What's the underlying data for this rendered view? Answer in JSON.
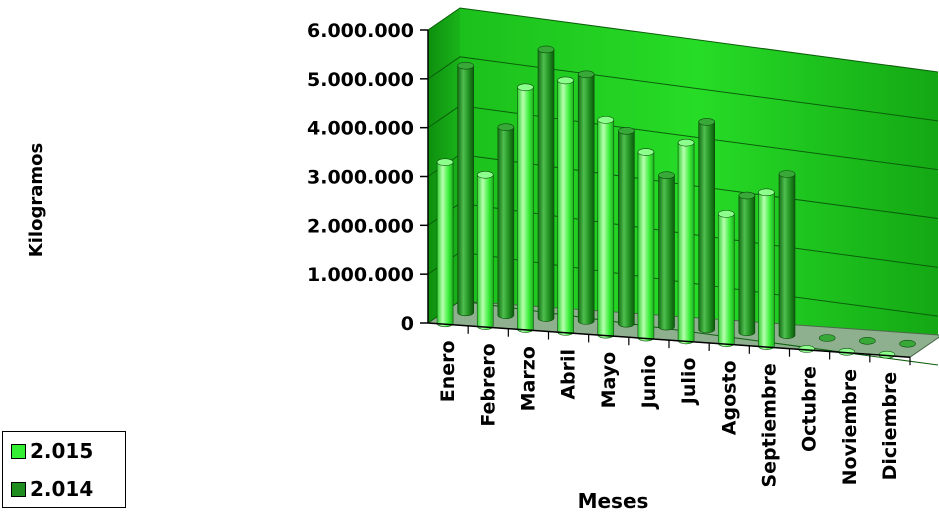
{
  "chart_data": {
    "type": "bar",
    "style": "3d-cylinder",
    "title": "",
    "xlabel": "Meses",
    "ylabel": "Kilogramos",
    "ylim": [
      0,
      6000000
    ],
    "yticks": [
      0,
      1000000,
      2000000,
      3000000,
      4000000,
      5000000,
      6000000
    ],
    "ytick_labels": [
      "0",
      "1.000.000",
      "2.000.000",
      "3.000.000",
      "4.000.000",
      "5.000.000",
      "6.000.000"
    ],
    "grid": true,
    "legend_position": "bottom-left",
    "categories": [
      "Enero",
      "Febrero",
      "Marzo",
      "Abril",
      "Mayo",
      "Junio",
      "Julio",
      "Agosto",
      "Septiembre",
      "Octubre",
      "Noviembre",
      "Diciembre"
    ],
    "series": [
      {
        "name": "2.015",
        "color": "#33ee33",
        "values": [
          3300000,
          3100000,
          4950000,
          5150000,
          4400000,
          3800000,
          4050000,
          2650000,
          3150000,
          0,
          0,
          0
        ]
      },
      {
        "name": "2.014",
        "color": "#1e8c1e",
        "values": [
          5050000,
          3850000,
          5500000,
          5050000,
          3950000,
          3100000,
          4250000,
          2800000,
          3300000,
          0,
          0,
          0
        ]
      }
    ],
    "colors": {
      "wall": "#22d122",
      "floor": "#8fb08f"
    }
  },
  "legend": {
    "items": [
      "2.015",
      "2.014"
    ]
  }
}
